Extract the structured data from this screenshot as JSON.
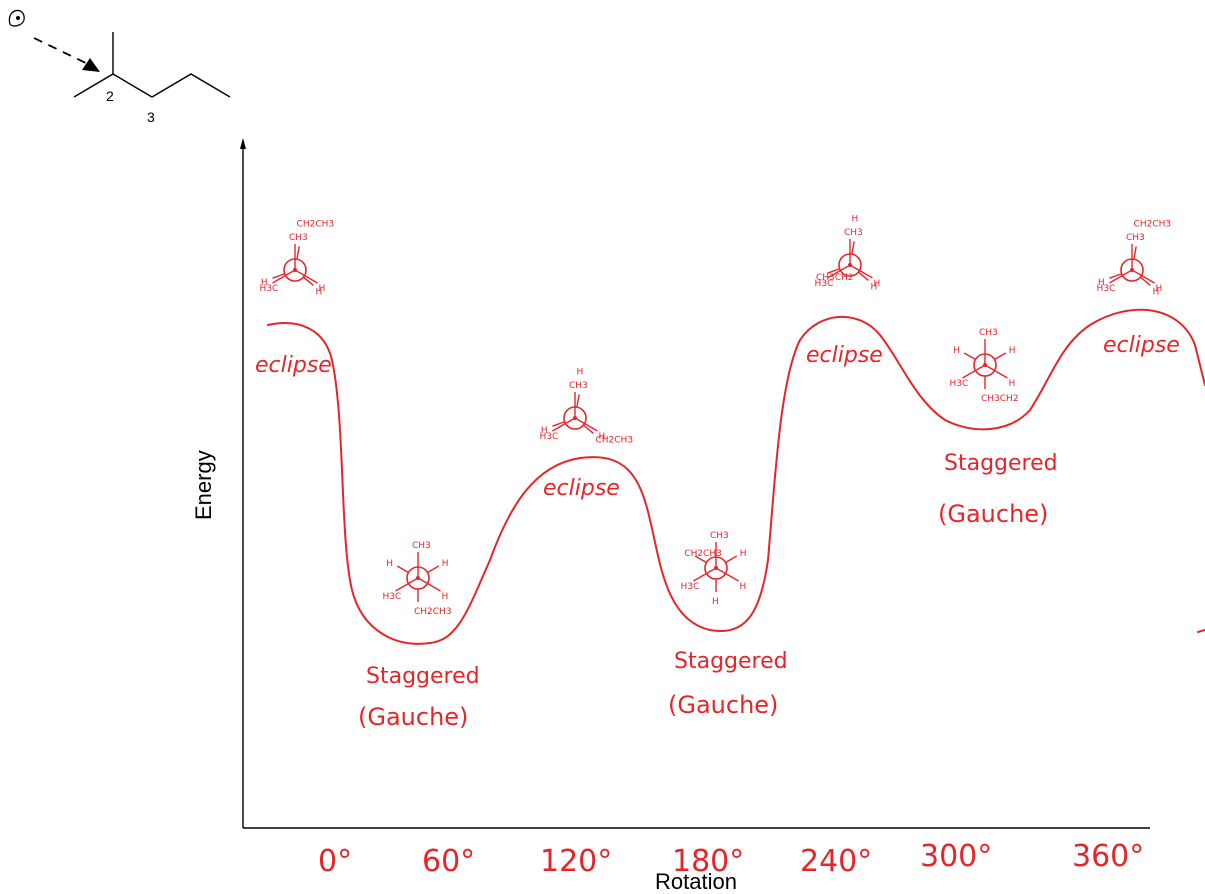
{
  "molecule": {
    "carbon_labels": [
      "2",
      "3"
    ],
    "eye_icon": "eye-icon"
  },
  "axes": {
    "ylabel": "Energy",
    "xlabel": "Rotation",
    "x_ticks": [
      "0°",
      "60°",
      "120°",
      "180°",
      "240°",
      "300°",
      "360°"
    ]
  },
  "conformations": [
    {
      "label": "eclipse",
      "front": [
        "CH3",
        "H3C",
        "H"
      ],
      "back": [
        "CH2CH3",
        "H",
        "H"
      ]
    },
    {
      "label": "Staggered\n(Gauche)",
      "front": [
        "CH3",
        "H3C",
        "H"
      ],
      "back": [
        "CH2CH3",
        "H",
        "H"
      ]
    },
    {
      "label": "eclipse",
      "front": [
        "CH3",
        "H3C",
        "H"
      ],
      "back": [
        "H",
        "H",
        "CH2CH3"
      ]
    },
    {
      "label": "Staggered\n(Gauche)",
      "front": [
        "CH3",
        "H3C",
        "H"
      ],
      "back": [
        "H",
        "H",
        "CH2CH3"
      ]
    },
    {
      "label": "eclipse",
      "front": [
        "CH3",
        "H3C",
        "H"
      ],
      "back": [
        "H",
        "CH3CH2",
        "H"
      ]
    },
    {
      "label": "Staggered\n(Gauche)",
      "front": [
        "CH3",
        "H3C",
        "H"
      ],
      "back": [
        "CH3CH2",
        "H",
        "H"
      ]
    },
    {
      "label": "eclipse",
      "front": [
        "CH3",
        "H3C",
        "H"
      ],
      "back": [
        "CH2CH3",
        "H",
        "H"
      ]
    }
  ],
  "text": {
    "eclipse_1": "eclipse",
    "eclipse_2": "eclipse",
    "eclipse_3": "eclipse",
    "eclipse_4": "eclipse",
    "staggered_1a": "Staggered",
    "staggered_1b": "(Gauche)",
    "staggered_2a": "Staggered",
    "staggered_2b": "(Gauche)",
    "staggered_3a": "Staggered",
    "staggered_3b": "(Gauche)"
  },
  "colors": {
    "ink": "#e4262b",
    "axis": "#000000"
  }
}
